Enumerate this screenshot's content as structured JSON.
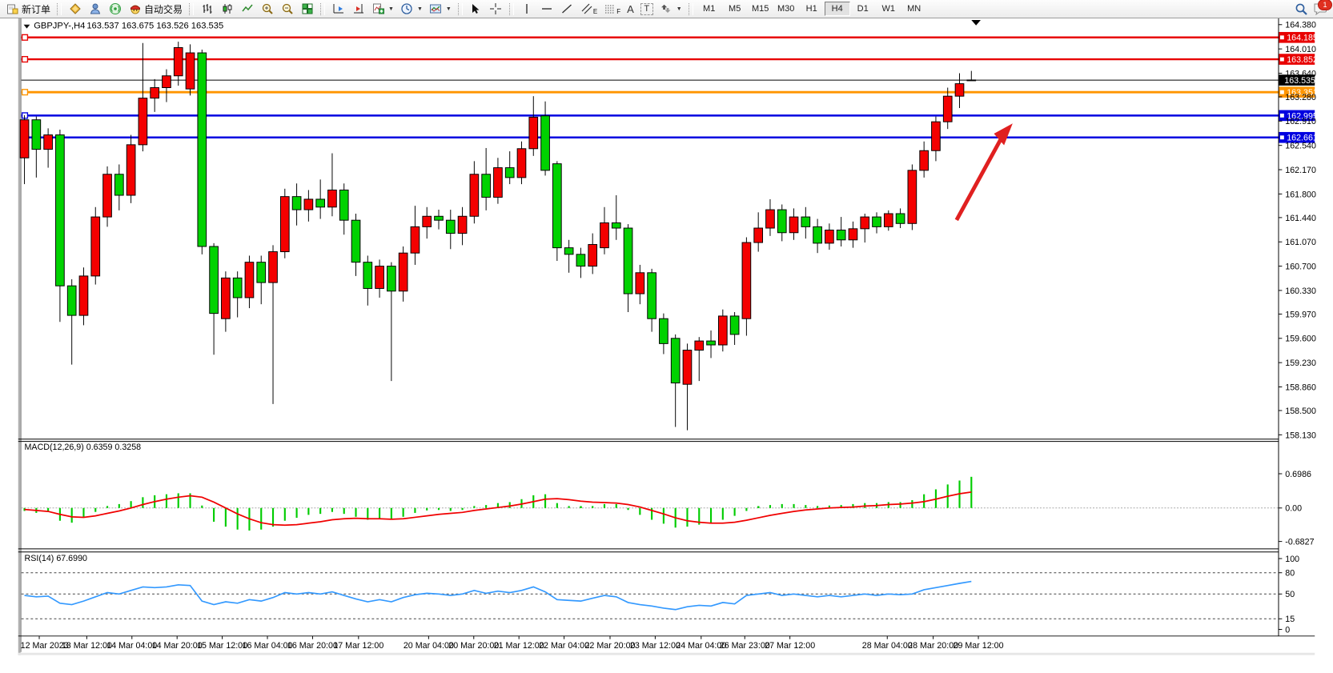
{
  "toolbar": {
    "new_order_label": "新订单",
    "auto_trading_label": "自动交易",
    "glyph_text_tool": "A",
    "glyph_label_tool": "T",
    "glyph_channel_sub": "E",
    "glyph_fibo_sub": "F",
    "timeframes": [
      "M1",
      "M5",
      "M15",
      "M30",
      "H1",
      "H4",
      "D1",
      "W1",
      "MN"
    ],
    "active_timeframe": "H4",
    "notification_badge": "1"
  },
  "chart": {
    "symbol_title": "GBPJPY-,H4",
    "ohlc_text": "163.537 163.675 163.526 163.535"
  },
  "macd_panel": {
    "label": "MACD(12,26,9) 0.6359 0.3258"
  },
  "rsi_panel": {
    "label": "RSI(14) 67.6990"
  },
  "chart_data": {
    "type": "candlestick",
    "symbol": "GBPJPY-",
    "timeframe": "H4",
    "current_bar": {
      "open": 163.537,
      "high": 163.675,
      "low": 163.526,
      "close": 163.535
    },
    "up_color": "#f40000",
    "down_color": "#00d200",
    "current_price": 163.535,
    "price_axis_ticks": [
      164.38,
      164.01,
      163.64,
      163.28,
      162.91,
      162.54,
      162.17,
      161.8,
      161.44,
      161.07,
      160.7,
      160.33,
      159.97,
      159.6,
      159.23,
      158.86,
      158.5,
      158.13
    ],
    "horizontal_lines": [
      {
        "price": 164.185,
        "color": "#e80000",
        "width": 2.5
      },
      {
        "price": 163.852,
        "color": "#e80000",
        "width": 2.5
      },
      {
        "price": 163.351,
        "color": "#ff9500",
        "width": 3
      },
      {
        "price": 162.995,
        "color": "#0000e0",
        "width": 2.5
      },
      {
        "price": 162.661,
        "color": "#0000e0",
        "width": 2.5
      }
    ],
    "time_labels": [
      "12 Mar 2023",
      "13 Mar 12:00",
      "14 Mar 04:00",
      "14 Mar 20:00",
      "15 Mar 12:00",
      "16 Mar 04:00",
      "16 Mar 20:00",
      "17 Mar 12:00",
      "20 Mar 04:00",
      "20 Mar 20:00",
      "21 Mar 12:00",
      "22 Mar 04:00",
      "22 Mar 20:00",
      "23 Mar 12:00",
      "24 Mar 04:00",
      "26 Mar 23:00",
      "27 Mar 12:00",
      "28 Mar 04:00",
      "28 Mar 20:00",
      "29 Mar 12:00"
    ],
    "candles": [
      [
        162.35,
        163.0,
        161.95,
        162.93
      ],
      [
        162.93,
        162.98,
        162.05,
        162.48
      ],
      [
        162.48,
        162.8,
        162.2,
        162.7
      ],
      [
        162.7,
        162.78,
        159.85,
        160.4
      ],
      [
        160.4,
        160.5,
        159.2,
        159.95
      ],
      [
        159.95,
        160.68,
        159.8,
        160.55
      ],
      [
        160.55,
        161.6,
        160.42,
        161.45
      ],
      [
        161.45,
        162.22,
        161.3,
        162.1
      ],
      [
        162.1,
        162.25,
        161.55,
        161.78
      ],
      [
        161.78,
        162.7,
        161.66,
        162.55
      ],
      [
        162.55,
        164.1,
        162.45,
        163.26
      ],
      [
        163.26,
        163.55,
        163.05,
        163.42
      ],
      [
        163.42,
        163.7,
        163.2,
        163.6
      ],
      [
        163.6,
        164.12,
        163.45,
        164.03
      ],
      [
        163.4,
        164.08,
        163.3,
        163.95
      ],
      [
        163.95,
        164.0,
        160.88,
        161.0
      ],
      [
        161.0,
        161.05,
        159.35,
        159.98
      ],
      [
        159.9,
        160.62,
        159.7,
        160.52
      ],
      [
        160.52,
        160.62,
        159.92,
        160.22
      ],
      [
        160.22,
        160.86,
        160.06,
        160.76
      ],
      [
        160.76,
        160.86,
        160.12,
        160.45
      ],
      [
        160.45,
        161.02,
        158.6,
        160.92
      ],
      [
        160.92,
        161.88,
        160.82,
        161.76
      ],
      [
        161.76,
        161.96,
        161.32,
        161.56
      ],
      [
        161.56,
        161.86,
        161.38,
        161.72
      ],
      [
        161.72,
        162.02,
        161.42,
        161.6
      ],
      [
        161.6,
        162.42,
        161.46,
        161.86
      ],
      [
        161.86,
        161.96,
        161.18,
        161.4
      ],
      [
        161.4,
        161.5,
        160.55,
        160.76
      ],
      [
        160.76,
        160.86,
        160.1,
        160.36
      ],
      [
        160.36,
        160.8,
        160.22,
        160.7
      ],
      [
        160.7,
        160.76,
        158.95,
        160.32
      ],
      [
        160.32,
        161.0,
        160.16,
        160.9
      ],
      [
        160.9,
        161.62,
        160.72,
        161.3
      ],
      [
        161.3,
        161.6,
        161.12,
        161.46
      ],
      [
        161.46,
        161.56,
        161.26,
        161.4
      ],
      [
        161.4,
        161.56,
        160.96,
        161.2
      ],
      [
        161.2,
        161.6,
        161.02,
        161.46
      ],
      [
        161.46,
        162.3,
        161.35,
        162.1
      ],
      [
        162.1,
        162.5,
        161.55,
        161.75
      ],
      [
        161.75,
        162.35,
        161.65,
        162.2
      ],
      [
        162.2,
        162.45,
        161.95,
        162.05
      ],
      [
        162.05,
        162.6,
        161.95,
        162.49
      ],
      [
        162.49,
        163.29,
        162.38,
        162.97
      ],
      [
        162.99,
        163.21,
        162.08,
        162.16
      ],
      [
        162.26,
        162.3,
        160.78,
        160.98
      ],
      [
        160.98,
        161.1,
        160.6,
        160.88
      ],
      [
        160.88,
        160.98,
        160.52,
        160.7
      ],
      [
        160.7,
        161.2,
        160.58,
        161.03
      ],
      [
        160.98,
        161.6,
        160.88,
        161.36
      ],
      [
        161.36,
        161.78,
        161.1,
        161.28
      ],
      [
        161.28,
        161.34,
        160.0,
        160.28
      ],
      [
        160.28,
        160.72,
        160.12,
        160.6
      ],
      [
        160.6,
        160.66,
        159.7,
        159.9
      ],
      [
        159.9,
        159.98,
        159.36,
        159.52
      ],
      [
        159.6,
        159.66,
        158.25,
        158.92
      ],
      [
        158.9,
        159.52,
        158.2,
        159.42
      ],
      [
        159.42,
        159.62,
        158.95,
        159.56
      ],
      [
        159.56,
        159.72,
        159.3,
        159.5
      ],
      [
        159.5,
        160.04,
        159.4,
        159.94
      ],
      [
        159.94,
        160.0,
        159.5,
        159.66
      ],
      [
        159.9,
        161.14,
        159.64,
        161.06
      ],
      [
        161.06,
        161.52,
        160.92,
        161.28
      ],
      [
        161.28,
        161.72,
        161.16,
        161.56
      ],
      [
        161.56,
        161.64,
        161.08,
        161.21
      ],
      [
        161.21,
        161.58,
        161.1,
        161.45
      ],
      [
        161.45,
        161.6,
        161.12,
        161.3
      ],
      [
        161.3,
        161.42,
        160.9,
        161.05
      ],
      [
        161.05,
        161.35,
        160.95,
        161.25
      ],
      [
        161.25,
        161.45,
        161.0,
        161.1
      ],
      [
        161.1,
        161.38,
        160.98,
        161.27
      ],
      [
        161.27,
        161.5,
        161.06,
        161.45
      ],
      [
        161.45,
        161.52,
        161.2,
        161.3
      ],
      [
        161.3,
        161.55,
        161.24,
        161.5
      ],
      [
        161.5,
        161.58,
        161.28,
        161.35
      ],
      [
        161.35,
        162.25,
        161.25,
        162.16
      ],
      [
        162.16,
        162.6,
        162.05,
        162.46
      ],
      [
        162.46,
        162.98,
        162.3,
        162.9
      ],
      [
        162.9,
        163.42,
        162.79,
        163.29
      ],
      [
        163.29,
        163.64,
        163.11,
        163.48
      ],
      [
        163.537,
        163.675,
        163.526,
        163.535
      ]
    ],
    "indicators": {
      "macd": {
        "params": "12,26,9",
        "macd_value": 0.6359,
        "signal_value": 0.3258,
        "axis_ticks": [
          "0.6986",
          "0.00",
          "-0.6827"
        ],
        "axis_values": [
          0.6986,
          0.0,
          -0.6827
        ],
        "histogram": [
          -0.06,
          -0.1,
          -0.08,
          -0.26,
          -0.3,
          -0.2,
          -0.08,
          0.04,
          0.08,
          0.14,
          0.22,
          0.26,
          0.28,
          0.3,
          0.3,
          0.05,
          -0.28,
          -0.38,
          -0.44,
          -0.46,
          -0.44,
          -0.38,
          -0.26,
          -0.2,
          -0.14,
          -0.12,
          -0.08,
          -0.12,
          -0.18,
          -0.24,
          -0.22,
          -0.24,
          -0.18,
          -0.1,
          -0.05,
          -0.04,
          -0.06,
          -0.04,
          0.04,
          0.06,
          0.1,
          0.12,
          0.18,
          0.26,
          0.28,
          0.1,
          0.04,
          0.02,
          0.04,
          0.08,
          0.08,
          -0.04,
          -0.14,
          -0.24,
          -0.32,
          -0.4,
          -0.38,
          -0.34,
          -0.3,
          -0.24,
          -0.16,
          -0.06,
          0.02,
          0.06,
          0.08,
          0.08,
          0.06,
          0.04,
          0.05,
          0.06,
          0.08,
          0.1,
          0.1,
          0.12,
          0.12,
          0.16,
          0.28,
          0.38,
          0.48,
          0.56,
          0.6359
        ],
        "signal": [
          -0.03,
          -0.05,
          -0.07,
          -0.13,
          -0.18,
          -0.19,
          -0.16,
          -0.11,
          -0.06,
          0.0,
          0.07,
          0.13,
          0.18,
          0.22,
          0.25,
          0.22,
          0.12,
          0.0,
          -0.12,
          -0.22,
          -0.3,
          -0.34,
          -0.35,
          -0.34,
          -0.31,
          -0.28,
          -0.24,
          -0.22,
          -0.21,
          -0.22,
          -0.22,
          -0.23,
          -0.22,
          -0.19,
          -0.16,
          -0.13,
          -0.11,
          -0.09,
          -0.05,
          -0.02,
          0.01,
          0.04,
          0.08,
          0.13,
          0.18,
          0.19,
          0.17,
          0.14,
          0.12,
          0.11,
          0.1,
          0.07,
          0.02,
          -0.05,
          -0.12,
          -0.2,
          -0.26,
          -0.29,
          -0.31,
          -0.31,
          -0.29,
          -0.25,
          -0.2,
          -0.15,
          -0.11,
          -0.07,
          -0.04,
          -0.02,
          0.0,
          0.01,
          0.02,
          0.04,
          0.05,
          0.07,
          0.08,
          0.1,
          0.13,
          0.18,
          0.24,
          0.29,
          0.3258
        ],
        "histogram_color": "#00cc00",
        "signal_color": "#f00000"
      },
      "rsi": {
        "period": 14,
        "value": 67.699,
        "axis_ticks": [
          "100",
          "80",
          "50",
          "15",
          "0"
        ],
        "axis_values": [
          100,
          80,
          50,
          15,
          0
        ],
        "dashed_levels": [
          80,
          50,
          15
        ],
        "values": [
          48,
          46,
          47,
          37,
          35,
          40,
          46,
          52,
          50,
          55,
          60,
          59,
          60,
          63,
          62,
          40,
          35,
          39,
          37,
          42,
          40,
          45,
          52,
          50,
          52,
          50,
          53,
          48,
          43,
          39,
          42,
          39,
          45,
          49,
          51,
          50,
          48,
          50,
          55,
          51,
          54,
          52,
          55,
          60,
          53,
          42,
          41,
          40,
          44,
          48,
          46,
          38,
          35,
          33,
          30,
          28,
          32,
          34,
          33,
          38,
          36,
          48,
          50,
          52,
          48,
          50,
          48,
          46,
          48,
          46,
          48,
          50,
          48,
          50,
          49,
          50,
          56,
          59,
          62,
          65,
          67.699
        ],
        "line_color": "#3399ff"
      }
    },
    "annotations": [
      {
        "kind": "arrow",
        "direction": "up-right",
        "color": "#e02020"
      }
    ]
  }
}
